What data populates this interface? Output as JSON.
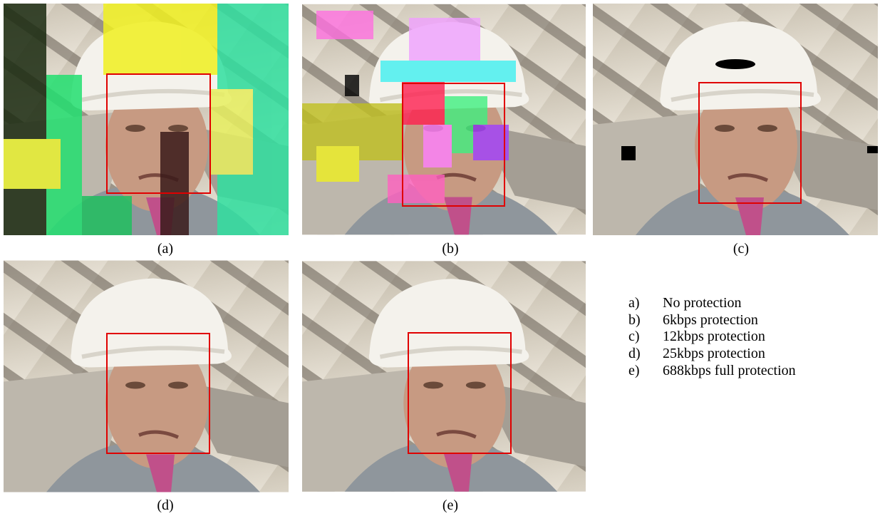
{
  "panels": [
    {
      "label": "(a)"
    },
    {
      "label": "(b)"
    },
    {
      "label": "(c)"
    },
    {
      "label": "(d)"
    },
    {
      "label": "(e)"
    }
  ],
  "legend": [
    {
      "key": "a)",
      "text": "No protection"
    },
    {
      "key": "b)",
      "text": "6kbps protection"
    },
    {
      "key": "c)",
      "text": "12kbps protection"
    },
    {
      "key": "d)",
      "text": "25kbps protection"
    },
    {
      "key": "e)",
      "text": "688kbps full protection"
    }
  ]
}
